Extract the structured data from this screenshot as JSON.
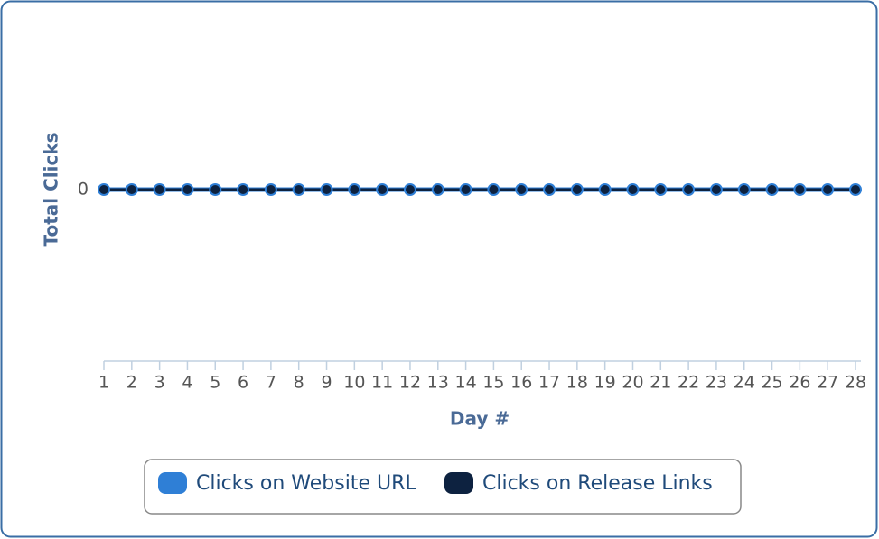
{
  "chart_data": {
    "type": "line",
    "x_label": "Day #",
    "y_label": "Total Clicks",
    "categories": [
      "1",
      "2",
      "3",
      "4",
      "5",
      "6",
      "7",
      "8",
      "9",
      "10",
      "11",
      "12",
      "13",
      "14",
      "15",
      "16",
      "17",
      "18",
      "19",
      "20",
      "21",
      "22",
      "23",
      "24",
      "25",
      "26",
      "27",
      "28"
    ],
    "series": [
      {
        "name": "Clicks on Website URL",
        "color": "#2f7fd6",
        "values": [
          0,
          0,
          0,
          0,
          0,
          0,
          0,
          0,
          0,
          0,
          0,
          0,
          0,
          0,
          0,
          0,
          0,
          0,
          0,
          0,
          0,
          0,
          0,
          0,
          0,
          0,
          0,
          0
        ]
      },
      {
        "name": "Clicks on Release Links",
        "color": "#0d2240",
        "values": [
          0,
          0,
          0,
          0,
          0,
          0,
          0,
          0,
          0,
          0,
          0,
          0,
          0,
          0,
          0,
          0,
          0,
          0,
          0,
          0,
          0,
          0,
          0,
          0,
          0,
          0,
          0,
          0
        ]
      }
    ],
    "ylim": [
      -1,
      1
    ],
    "yticks": [
      0
    ],
    "legend": "bottom"
  }
}
